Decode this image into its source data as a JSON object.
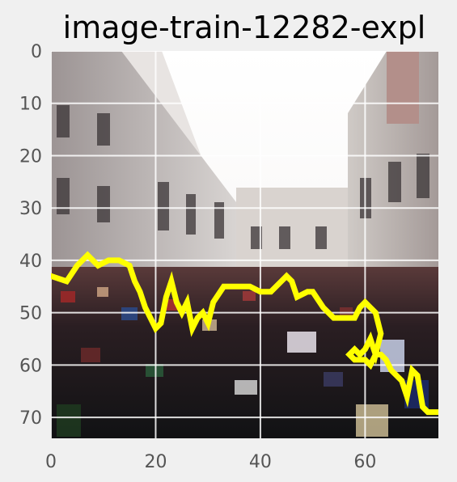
{
  "chart_data": {
    "type": "image",
    "title": "image-train-12282-expl",
    "xlim": [
      0,
      74
    ],
    "ylim": [
      74,
      0
    ],
    "x_ticks": [
      0,
      20,
      40,
      60
    ],
    "y_ticks": [
      0,
      10,
      20,
      30,
      40,
      50,
      60,
      70
    ],
    "x_tick_labels": [
      "0",
      "20",
      "40",
      "60"
    ],
    "y_tick_labels": [
      "0",
      "10",
      "20",
      "30",
      "40",
      "50",
      "60",
      "70"
    ],
    "grid": true,
    "overlay_color": "#ffff00",
    "overlay_contour": [
      [
        0,
        43
      ],
      [
        3,
        44
      ],
      [
        5,
        41
      ],
      [
        7,
        39
      ],
      [
        9,
        41
      ],
      [
        11,
        40
      ],
      [
        13,
        40
      ],
      [
        15,
        41
      ],
      [
        16,
        44
      ],
      [
        17,
        46
      ],
      [
        18,
        49
      ],
      [
        19,
        51
      ],
      [
        20,
        53
      ],
      [
        21,
        52
      ],
      [
        22,
        47
      ],
      [
        23,
        44
      ],
      [
        24,
        48
      ],
      [
        25,
        50
      ],
      [
        26,
        48
      ],
      [
        27,
        53
      ],
      [
        28,
        51
      ],
      [
        29,
        50
      ],
      [
        30,
        52
      ],
      [
        31,
        48
      ],
      [
        33,
        45
      ],
      [
        35,
        45
      ],
      [
        38,
        45
      ],
      [
        40,
        46
      ],
      [
        42,
        46
      ],
      [
        44,
        44
      ],
      [
        45,
        43
      ],
      [
        46,
        44
      ],
      [
        47,
        47
      ],
      [
        49,
        46
      ],
      [
        50,
        46
      ],
      [
        52,
        49
      ],
      [
        54,
        51
      ],
      [
        56,
        51
      ],
      [
        58,
        51
      ],
      [
        59,
        49
      ],
      [
        60,
        48
      ],
      [
        61,
        49
      ],
      [
        62,
        50
      ],
      [
        63,
        54
      ],
      [
        62,
        58
      ],
      [
        61,
        55
      ],
      [
        60,
        57
      ],
      [
        59,
        58
      ],
      [
        58,
        57
      ],
      [
        57,
        58
      ],
      [
        58,
        59
      ],
      [
        60,
        59
      ],
      [
        61,
        60
      ],
      [
        62,
        58
      ],
      [
        63,
        58
      ],
      [
        64,
        59
      ],
      [
        65,
        61
      ],
      [
        66,
        62
      ],
      [
        67,
        63
      ],
      [
        68,
        66
      ],
      [
        69,
        61
      ],
      [
        70,
        62
      ],
      [
        71,
        68
      ],
      [
        72,
        69
      ],
      [
        74,
        69
      ]
    ]
  }
}
